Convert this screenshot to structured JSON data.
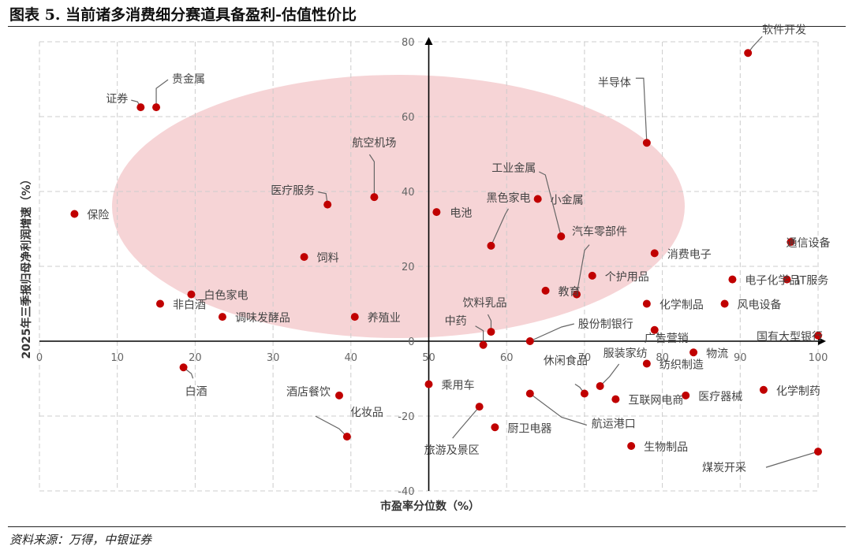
{
  "figure": {
    "title": "图表 5. 当前诸多消费细分赛道具备盈利-估值性价比",
    "source": "资料来源：万得，中银证券"
  },
  "colors": {
    "point": "#c00000",
    "ellipse": "#f6d4d6",
    "grid": "#cccccc",
    "axis": "#000000",
    "leader": "#666666"
  },
  "chart_data": {
    "type": "scatter",
    "xlabel": "市盈率分位数（%）",
    "ylabel": "2025年三季报归母净利润增速（%）",
    "xlim": [
      0,
      100
    ],
    "ylim": [
      -40,
      80
    ],
    "x_ticks": [
      0,
      10,
      20,
      30,
      40,
      50,
      60,
      70,
      80,
      90,
      100
    ],
    "y_ticks": [
      -40,
      -20,
      0,
      20,
      40,
      60,
      80
    ],
    "grid": true,
    "points": [
      {
        "name": "软件开发",
        "x": 91,
        "y": 77
      },
      {
        "name": "贵金属",
        "x": 15,
        "y": 62.5
      },
      {
        "name": "证券",
        "x": 13,
        "y": 62.5
      },
      {
        "name": "半导体",
        "x": 78,
        "y": 53
      },
      {
        "name": "航空机场",
        "x": 43,
        "y": 38.5
      },
      {
        "name": "工业金属",
        "x": 67,
        "y": 28
      },
      {
        "name": "小金属",
        "x": 64,
        "y": 38
      },
      {
        "name": "黑色家电",
        "x": 58,
        "y": 25.5
      },
      {
        "name": "医疗服务",
        "x": 37,
        "y": 36.5
      },
      {
        "name": "电池",
        "x": 51,
        "y": 34.5
      },
      {
        "name": "保险",
        "x": 4.5,
        "y": 34
      },
      {
        "name": "汽车零部件",
        "x": 69,
        "y": 12.5
      },
      {
        "name": "消费电子",
        "x": 79,
        "y": 23.5
      },
      {
        "name": "通信设备",
        "x": 96.5,
        "y": 26.5
      },
      {
        "name": "饲料",
        "x": 34,
        "y": 22.5
      },
      {
        "name": "电子化学品",
        "x": 89,
        "y": 16.5
      },
      {
        "name": "IT服务",
        "x": 96,
        "y": 16.5
      },
      {
        "name": "个护用品",
        "x": 71,
        "y": 17.5
      },
      {
        "name": "白色家电",
        "x": 19.5,
        "y": 12.5
      },
      {
        "name": "教育",
        "x": 65,
        "y": 13.5
      },
      {
        "name": "非白酒",
        "x": 15.5,
        "y": 10
      },
      {
        "name": "化学制品",
        "x": 78,
        "y": 10
      },
      {
        "name": "风电设备",
        "x": 88,
        "y": 10
      },
      {
        "name": "调味发酵品",
        "x": 23.5,
        "y": 6.5
      },
      {
        "name": "养殖业",
        "x": 40.5,
        "y": 6.5
      },
      {
        "name": "饮料乳品",
        "x": 58,
        "y": 2.5
      },
      {
        "name": "中药",
        "x": 57,
        "y": -1
      },
      {
        "name": "股份制银行",
        "x": 63,
        "y": 0
      },
      {
        "name": "广告营销",
        "x": 79,
        "y": 3
      },
      {
        "name": "物流",
        "x": 84,
        "y": -3
      },
      {
        "name": "国有大型银行",
        "x": 100,
        "y": 1.5
      },
      {
        "name": "白酒",
        "x": 18.5,
        "y": -7
      },
      {
        "name": "乘用车",
        "x": 50,
        "y": -11.5
      },
      {
        "name": "服装家纺",
        "x": 72,
        "y": -12
      },
      {
        "name": "纺织制造",
        "x": 78,
        "y": -6
      },
      {
        "name": "休闲食品",
        "x": 70,
        "y": -14
      },
      {
        "name": "互联网电商",
        "x": 74,
        "y": -15.5
      },
      {
        "name": "医疗器械",
        "x": 83,
        "y": -14.5
      },
      {
        "name": "化学制药",
        "x": 93,
        "y": -13
      },
      {
        "name": "酒店餐饮",
        "x": 38.5,
        "y": -14.5
      },
      {
        "name": "化妆品",
        "x": 39.5,
        "y": -25.5
      },
      {
        "name": "旅游及景区",
        "x": 56.5,
        "y": -17.5
      },
      {
        "name": "厨卫电器",
        "x": 58.5,
        "y": -23
      },
      {
        "name": "航运港口",
        "x": 63,
        "y": -14
      },
      {
        "name": "生物制品",
        "x": 76,
        "y": -28
      },
      {
        "name": "煤炭开采",
        "x": 100,
        "y": -29.5
      }
    ]
  }
}
